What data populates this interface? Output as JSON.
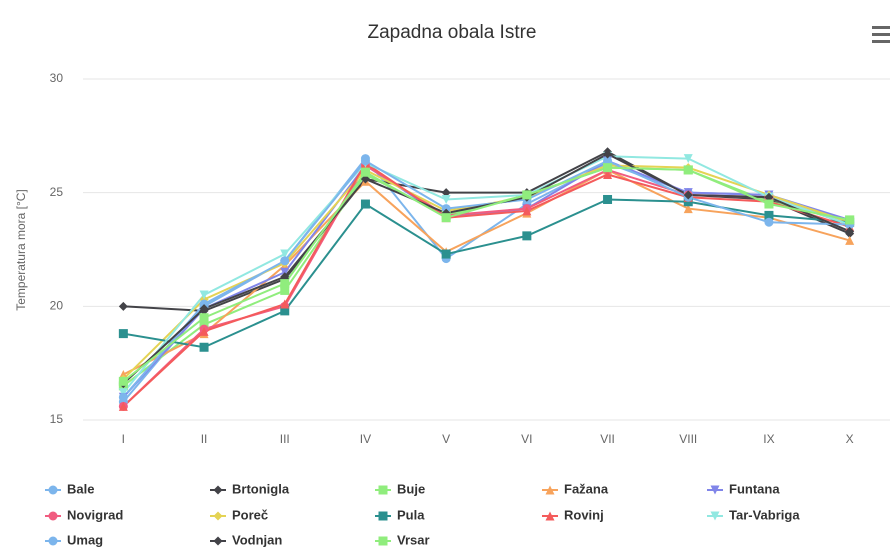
{
  "chart_data": {
    "type": "line",
    "title": "Zapadna obala Istre",
    "y_label": "Temperatura mora [°C]",
    "categories": [
      "I",
      "II",
      "III",
      "IV",
      "V",
      "VI",
      "VII",
      "VIII",
      "IX",
      "X"
    ],
    "ylim": [
      15,
      30
    ],
    "yticks": [
      15,
      20,
      25,
      30
    ],
    "grid": true,
    "series": [
      {
        "name": "Bale",
        "color": "#7cb5ec",
        "marker": "circle",
        "values": [
          15.8,
          20.0,
          22.0,
          26.5,
          22.1,
          24.5,
          26.3,
          25.0,
          24.9,
          23.7
        ]
      },
      {
        "name": "Brtonigla",
        "color": "#434348",
        "marker": "diamond",
        "values": [
          20.0,
          19.8,
          21.2,
          25.6,
          25.0,
          25.0,
          26.8,
          24.9,
          24.7,
          23.2
        ]
      },
      {
        "name": "Buje",
        "color": "#90ed7d",
        "marker": "square",
        "values": [
          16.5,
          19.2,
          20.7,
          25.8,
          24.0,
          24.9,
          26.1,
          26.0,
          24.6,
          23.8
        ]
      },
      {
        "name": "Fažana",
        "color": "#f7a35c",
        "marker": "triangle",
        "values": [
          17.0,
          18.8,
          21.8,
          25.5,
          22.4,
          24.1,
          26.0,
          24.3,
          23.9,
          22.9
        ]
      },
      {
        "name": "Funtana",
        "color": "#8085e9",
        "marker": "triangle-down",
        "values": [
          16.0,
          19.9,
          21.5,
          26.2,
          23.9,
          24.3,
          26.4,
          25.0,
          24.9,
          23.8
        ]
      },
      {
        "name": "Novigrad",
        "color": "#f15c80",
        "marker": "circle",
        "values": [
          15.6,
          19.0,
          20.0,
          26.2,
          24.0,
          24.3,
          26.0,
          24.9,
          24.8,
          23.6
        ]
      },
      {
        "name": "Poreč",
        "color": "#e4d354",
        "marker": "diamond",
        "values": [
          16.8,
          20.3,
          21.9,
          26.0,
          24.2,
          24.8,
          26.2,
          26.1,
          24.9,
          23.7
        ]
      },
      {
        "name": "Pula",
        "color": "#2b908f",
        "marker": "square",
        "values": [
          18.8,
          18.2,
          19.8,
          24.5,
          22.3,
          23.1,
          24.7,
          24.6,
          24.0,
          23.7
        ]
      },
      {
        "name": "Rovinj",
        "color": "#f45b5b",
        "marker": "triangle",
        "values": [
          15.6,
          18.9,
          20.1,
          26.3,
          23.9,
          24.2,
          25.8,
          24.8,
          24.6,
          23.5
        ]
      },
      {
        "name": "Tar-Vabriga",
        "color": "#91e8e1",
        "marker": "triangle-down",
        "values": [
          16.2,
          20.5,
          22.3,
          26.3,
          24.7,
          24.9,
          26.6,
          26.5,
          24.8,
          23.6
        ]
      },
      {
        "name": "Umag",
        "color": "#7cb5ec",
        "marker": "circle",
        "values": [
          16.0,
          20.1,
          22.0,
          26.4,
          24.3,
          24.7,
          26.4,
          24.8,
          23.7,
          23.6
        ]
      },
      {
        "name": "Vodnjan",
        "color": "#434348",
        "marker": "diamond",
        "values": [
          16.6,
          19.9,
          21.3,
          25.6,
          24.1,
          24.8,
          26.7,
          24.9,
          24.8,
          23.3
        ]
      },
      {
        "name": "Vrsar",
        "color": "#90ed7d",
        "marker": "square",
        "values": [
          16.7,
          19.5,
          21.0,
          25.9,
          23.9,
          24.9,
          26.1,
          26.0,
          24.5,
          23.8
        ]
      }
    ]
  }
}
